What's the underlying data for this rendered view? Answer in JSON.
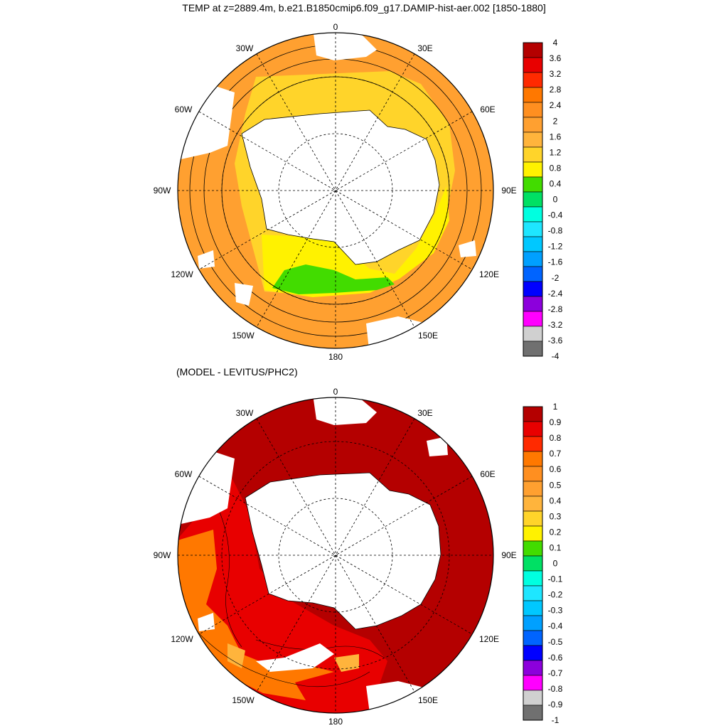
{
  "figure": {
    "title": "TEMP at z=2889.4m, b.e21.B1850cmip6.f09_g17.DAMIP-hist-aer.002 [1850-1880]",
    "subtitle": "(MODEL - LEVITUS/PHC2)"
  },
  "longitude_labels": [
    "0",
    "30E",
    "60E",
    "90E",
    "120E",
    "150E",
    "180",
    "150W",
    "120W",
    "90W",
    "60W",
    "30W"
  ],
  "colorbar_top": {
    "labels": [
      "4",
      "3.6",
      "3.2",
      "2.8",
      "2.4",
      "2",
      "1.6",
      "1.2",
      "0.8",
      "0.4",
      "0",
      "-0.4",
      "-0.8",
      "-1.2",
      "-1.6",
      "-2",
      "-2.4",
      "-2.8",
      "-3.2",
      "-3.6",
      "-4"
    ],
    "colors": [
      "#b40000",
      "#e80000",
      "#ff2a00",
      "#ff7800",
      "#ff8f20",
      "#ffa030",
      "#ffb43c",
      "#ffd42a",
      "#fff200",
      "#42dc00",
      "#00e064",
      "#00ffe0",
      "#1ee6ff",
      "#00c8ff",
      "#00a0ff",
      "#0064ff",
      "#0000ff",
      "#8c00dc",
      "#ff00ff",
      "#d0d0d0",
      "#707070"
    ]
  },
  "colorbar_bottom": {
    "labels": [
      "1",
      "0.9",
      "0.8",
      "0.7",
      "0.6",
      "0.5",
      "0.4",
      "0.3",
      "0.2",
      "0.1",
      "0",
      "-0.1",
      "-0.2",
      "-0.3",
      "-0.4",
      "-0.5",
      "-0.6",
      "-0.7",
      "-0.8",
      "-0.9",
      "-1"
    ],
    "colors": [
      "#b40000",
      "#e80000",
      "#ff2a00",
      "#ff7800",
      "#ff8f20",
      "#ffa030",
      "#ffb43c",
      "#ffd42a",
      "#fff200",
      "#42dc00",
      "#00e064",
      "#00ffe0",
      "#1ee6ff",
      "#00c8ff",
      "#00a0ff",
      "#0064ff",
      "#0000ff",
      "#8c00dc",
      "#ff00ff",
      "#d0d0d0",
      "#707070"
    ]
  },
  "palette": {
    "land": "#ffffff",
    "top_ocean_main": "#ffa030",
    "top_ocean_inner": "#ffd42a",
    "top_ocean_yellow": "#fff200",
    "top_ocean_green": "#42dc00",
    "bottom_ocean_main": "#b40000",
    "bottom_ocean_red": "#e80000",
    "bottom_ocean_orange": "#ff7800",
    "bottom_ocean_light": "#ffb43c"
  }
}
